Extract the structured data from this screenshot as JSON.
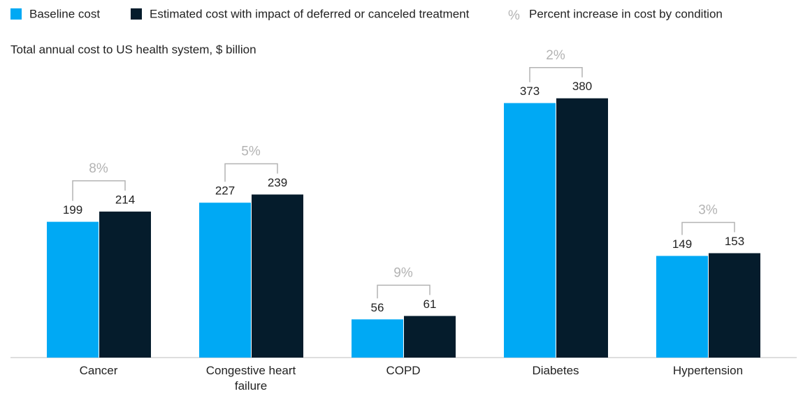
{
  "chart_data": {
    "type": "bar",
    "subtitle": "Total annual cost to US health system, $ billion",
    "categories": [
      "Cancer",
      "Congestive heart failure",
      "COPD",
      "Diabetes",
      "Hypertension"
    ],
    "series": [
      {
        "name": "Baseline cost",
        "color": "#00a9f4",
        "values": [
          199,
          227,
          56,
          373,
          149
        ]
      },
      {
        "name": "Estimated cost with impact of deferred or canceled treatment",
        "color": "#051c2c",
        "values": [
          214,
          239,
          61,
          380,
          153
        ]
      }
    ],
    "percent_increase": {
      "legend_symbol": "%",
      "name": "Percent increase in cost by condition",
      "color": "#b3b3b3",
      "values": [
        8,
        5,
        9,
        2,
        3
      ],
      "value_labels": [
        "8%",
        "5%",
        "9%",
        "2%",
        "3%"
      ]
    }
  }
}
